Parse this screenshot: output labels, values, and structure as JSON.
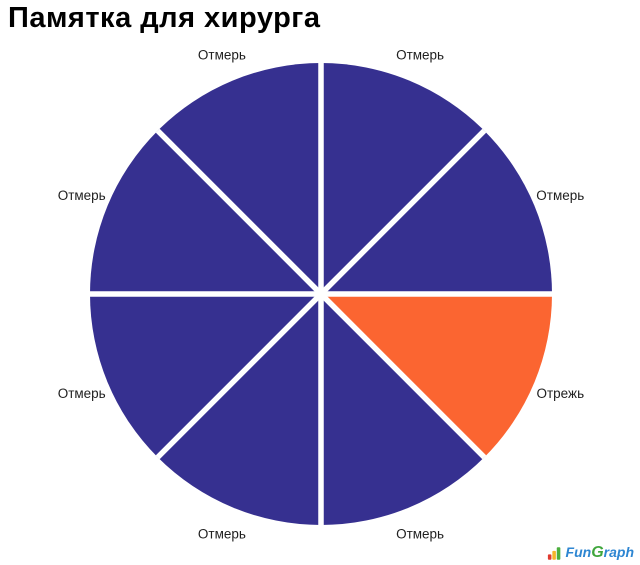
{
  "chart_data": {
    "type": "pie",
    "title": "Памятка для хирурга",
    "total_slices": 8,
    "start_angle_deg": 0,
    "direction": "clockwise",
    "legend": "none",
    "separator_color": "#FFFFFF",
    "label_color": "#1F1F1F",
    "background_color": "#FFFFFF",
    "slices": [
      {
        "label": "Отмерь",
        "value": 1,
        "color": "#363090"
      },
      {
        "label": "Отмерь",
        "value": 1,
        "color": "#363090"
      },
      {
        "label": "Отрежь",
        "value": 1,
        "color": "#FB6531"
      },
      {
        "label": "Отмерь",
        "value": 1,
        "color": "#363090"
      },
      {
        "label": "Отмерь",
        "value": 1,
        "color": "#363090"
      },
      {
        "label": "Отмерь",
        "value": 1,
        "color": "#363090"
      },
      {
        "label": "Отмерь",
        "value": 1,
        "color": "#363090"
      },
      {
        "label": "Отмерь",
        "value": 1,
        "color": "#363090"
      }
    ]
  },
  "watermark": {
    "name": "FunGraph",
    "parts": [
      {
        "text": "Fun",
        "color": "#2E86D2"
      },
      {
        "text": "G",
        "color": "#3FA63C"
      },
      {
        "text": "raph",
        "color": "#2E86D2"
      }
    ],
    "icon_bar_colors": [
      "#E03A2F",
      "#F5B52B",
      "#4CAF3E"
    ]
  }
}
